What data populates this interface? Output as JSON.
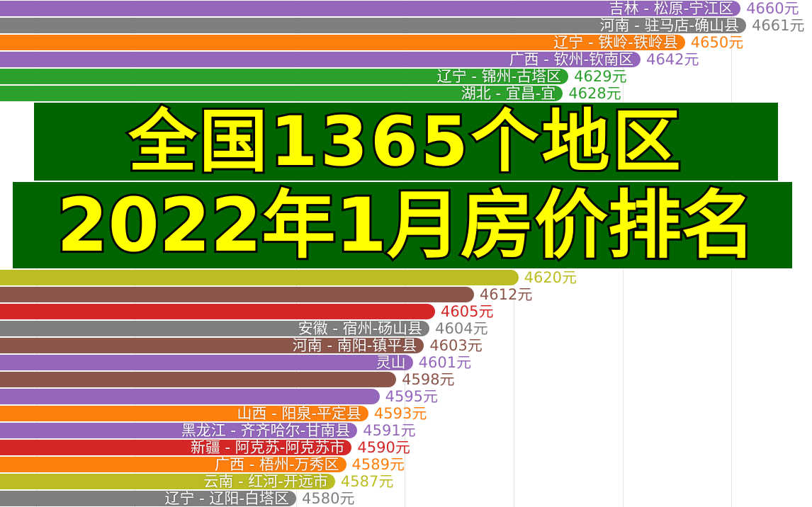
{
  "chart_data": {
    "type": "bar",
    "orientation": "horizontal",
    "unit": "元",
    "bars": [
      {
        "label": "吉林 - 松原-宁江区",
        "value": 4660,
        "color": "#9467bd"
      },
      {
        "label": "河南 - 驻马店-确山县",
        "value": 4661,
        "color": "#7f7f7f"
      },
      {
        "label": "辽宁 - 铁岭-铁岭县",
        "value": 4650,
        "color": "#ff7f0e"
      },
      {
        "label": "广西 - 钦州-钦南区",
        "value": 4642,
        "color": "#9467bd"
      },
      {
        "label": "辽宁 - 锦州-古塔区",
        "value": 4629,
        "color": "#2ca02c"
      },
      {
        "label": "湖北 - 宜昌-宜",
        "value": 4628,
        "color": "#2ca02c"
      },
      {
        "label": "",
        "value": 4620,
        "color": "#bcbd22"
      },
      {
        "label": "",
        "value": 4612,
        "color": "#8c564b"
      },
      {
        "label": "",
        "value": 4605,
        "color": "#d62728"
      },
      {
        "label": "安徽 - 宿州-砀山县",
        "value": 4604,
        "color": "#7f7f7f"
      },
      {
        "label": "河南 - 南阳-镇平县",
        "value": 4603,
        "color": "#8c564b"
      },
      {
        "label": "灵山",
        "value": 4601,
        "color": "#9467bd"
      },
      {
        "label": "",
        "value": 4598,
        "color": "#8c564b"
      },
      {
        "label": "",
        "value": 4595,
        "color": "#9467bd"
      },
      {
        "label": "山西 - 阳泉-平定县",
        "value": 4593,
        "color": "#ff7f0e"
      },
      {
        "label": "黑龙江 - 齐齐哈尔-甘南县",
        "value": 4591,
        "color": "#9467bd"
      },
      {
        "label": "新疆 - 阿克苏-阿克苏市",
        "value": 4590,
        "color": "#d62728"
      },
      {
        "label": "广西 - 梧州-万秀区",
        "value": 4589,
        "color": "#ff7f0e"
      },
      {
        "label": "云南 - 红河-开远市",
        "value": 4587,
        "color": "#bcbd22"
      },
      {
        "label": "辽宁 - 辽阳-白塔区",
        "value": 4580,
        "color": "#7f7f7f"
      }
    ],
    "grid": true
  },
  "overlay": {
    "line1": "全国1365个地区",
    "line2": "2022年1月房价排名",
    "text_color": "#ffff00",
    "band_color": "#006400"
  }
}
